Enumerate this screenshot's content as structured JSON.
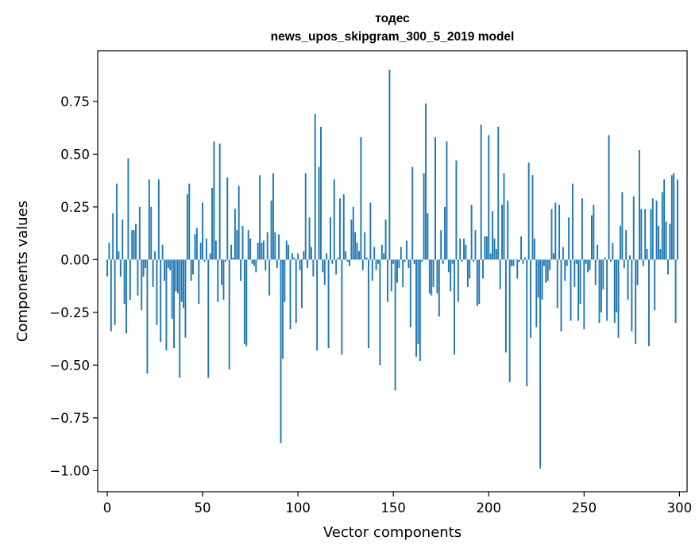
{
  "chart_data": {
    "type": "bar",
    "title": "тодес",
    "subtitle": "news_upos_skipgram_300_5_2019 model",
    "xlabel": "Vector components",
    "ylabel": "Components values",
    "xlim": [
      -5,
      304
    ],
    "ylim": [
      -1.1,
      0.99
    ],
    "xticks": [
      0,
      50,
      100,
      150,
      200,
      250,
      300
    ],
    "xtick_labels": [
      "0",
      "50",
      "100",
      "150",
      "200",
      "250",
      "300"
    ],
    "yticks": [
      0.75,
      0.5,
      0.25,
      0.0,
      -0.25,
      -0.5,
      -0.75,
      -1.0
    ],
    "ytick_labels": [
      "0.75",
      "0.50",
      "0.25",
      "0.00",
      "−0.25",
      "−0.50",
      "−0.75",
      "−1.00"
    ],
    "bar_color": "#1f77b4",
    "series": [
      {
        "name": "тодес",
        "values": [
          -0.08,
          0.08,
          -0.34,
          0.22,
          -0.31,
          0.36,
          0.04,
          -0.08,
          0.19,
          -0.21,
          -0.35,
          0.48,
          -0.19,
          0.14,
          0.14,
          0.17,
          -0.17,
          0.25,
          -0.24,
          -0.08,
          -0.04,
          -0.54,
          0.38,
          0.25,
          -0.13,
          0.04,
          -0.31,
          0.38,
          -0.39,
          0.07,
          -0.1,
          -0.43,
          -0.04,
          -0.05,
          -0.28,
          -0.42,
          -0.15,
          -0.16,
          -0.56,
          -0.2,
          -0.23,
          -0.37,
          0.31,
          0.36,
          -0.1,
          -0.07,
          0.12,
          0.15,
          -0.21,
          0.08,
          0.27,
          -0.01,
          0.1,
          -0.56,
          0.03,
          0.34,
          0.56,
          0.09,
          -0.2,
          0.55,
          -0.12,
          -0.19,
          -0.01,
          0.39,
          -0.52,
          0.07,
          0.01,
          0.24,
          0.14,
          0.35,
          -0.1,
          0.16,
          -0.4,
          -0.41,
          0.14,
          0.1,
          -0.02,
          -0.03,
          -0.06,
          0.08,
          0.4,
          0.08,
          0.09,
          -0.05,
          0.13,
          -0.17,
          0.28,
          0.41,
          0.13,
          -0.04,
          0.12,
          -0.87,
          -0.47,
          -0.2,
          0.09,
          0.07,
          -0.33,
          0.03,
          0.01,
          -0.3,
          0.03,
          -0.05,
          -0.23,
          0.04,
          0.41,
          -0.04,
          0.2,
          0.06,
          -0.08,
          0.69,
          -0.43,
          0.44,
          0.63,
          -0.06,
          -0.12,
          0.03,
          -0.42,
          0.2,
          -0.02,
          0.38,
          -0.07,
          0.01,
          0.29,
          -0.45,
          0.31,
          0.04,
          -0.01,
          -0.03,
          0.19,
          0.25,
          0.13,
          0.08,
          0.04,
          0.58,
          -0.05,
          0.13,
          0.01,
          -0.42,
          0.27,
          -0.1,
          0.06,
          -0.05,
          -0.02,
          -0.5,
          0.07,
          0.03,
          0.19,
          -0.2,
          0.9,
          -0.15,
          -0.02,
          -0.62,
          -0.11,
          -0.04,
          0.06,
          -0.13,
          -0.01,
          0.09,
          -0.04,
          -0.32,
          0.44,
          -0.02,
          -0.46,
          -0.4,
          -0.48,
          -0.01,
          0.41,
          0.74,
          0.22,
          -0.16,
          -0.17,
          -0.13,
          0.58,
          -0.16,
          -0.27,
          0.14,
          -0.02,
          0.25,
          0.56,
          -0.06,
          -0.15,
          -0.02,
          -0.45,
          0.47,
          -0.2,
          0.1,
          -0.01,
          0.1,
          0.07,
          -0.13,
          -0.09,
          0.26,
          -0.01,
          0.14,
          -0.22,
          -0.21,
          0.64,
          -0.09,
          0.11,
          0.11,
          0.59,
          0.03,
          0.23,
          0.1,
          0.05,
          0.63,
          -0.14,
          0.26,
          0.41,
          -0.44,
          0.28,
          -0.58,
          -0.03,
          -0.03,
          0.0,
          -0.09,
          -0.01,
          0.11,
          -0.02,
          0.01,
          -0.6,
          0.46,
          -0.37,
          0.4,
          0.1,
          -0.32,
          -0.18,
          -0.99,
          -0.19,
          -0.03,
          -0.11,
          -0.1,
          -0.05,
          0.24,
          0.03,
          0.27,
          -0.23,
          0.26,
          -0.34,
          0.06,
          -0.1,
          -0.03,
          0.2,
          -0.29,
          0.36,
          -0.13,
          -0.02,
          -0.29,
          -0.21,
          0.29,
          -0.33,
          -0.02,
          -0.06,
          -0.05,
          0.21,
          0.26,
          -0.12,
          0.07,
          -0.3,
          -0.25,
          -0.14,
          0.01,
          -0.29,
          0.59,
          -0.01,
          0.08,
          -0.3,
          -0.25,
          -0.37,
          0.16,
          0.32,
          -0.04,
          0.14,
          -0.19,
          0.02,
          -0.34,
          0.3,
          -0.4,
          -0.12,
          0.52,
          0.24,
          -0.03,
          0.24,
          0.05,
          -0.41,
          0.24,
          0.29,
          -0.24,
          0.28,
          0.16,
          0.05,
          0.32,
          0.38,
          0.18,
          -0.07,
          0.17,
          0.4,
          0.41,
          -0.3,
          0.38
        ]
      }
    ]
  }
}
